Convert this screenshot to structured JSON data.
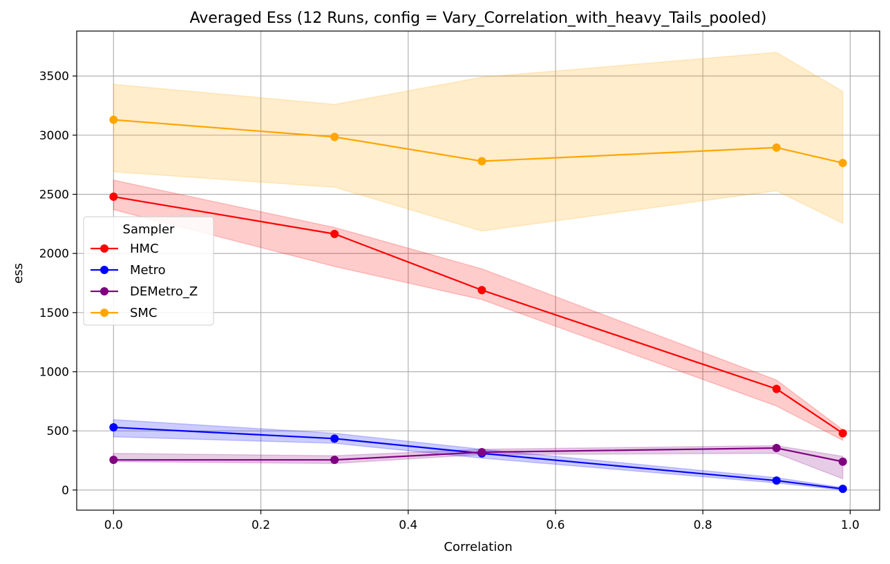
{
  "chart_data": {
    "type": "line",
    "title": "Averaged Ess (12 Runs, config = Vary_Correlation_with_heavy_Tails_pooled)",
    "xlabel": "Correlation",
    "ylabel": "ess",
    "xlim": [
      -0.05,
      1.04
    ],
    "ylim": [
      -170,
      3880
    ],
    "xticks": [
      0.0,
      0.2,
      0.4,
      0.6,
      0.8,
      1.0
    ],
    "xtick_labels": [
      "0.0",
      "0.2",
      "0.4",
      "0.6",
      "0.8",
      "1.0"
    ],
    "yticks": [
      0,
      500,
      1000,
      1500,
      2000,
      2500,
      3000,
      3500
    ],
    "ytick_labels": [
      "0",
      "500",
      "1000",
      "1500",
      "2000",
      "2500",
      "3000",
      "3500"
    ],
    "grid": true,
    "legend": {
      "title": "Sampler",
      "placement": "center-left"
    },
    "x": [
      0.0,
      0.3,
      0.5,
      0.9,
      0.99
    ],
    "series": [
      {
        "name": "HMC",
        "color": "#ff0000",
        "values": [
          2480,
          2165,
          1690,
          855,
          480
        ],
        "lower": [
          2370,
          1890,
          1610,
          710,
          420
        ],
        "upper": [
          2620,
          2220,
          1870,
          930,
          510
        ]
      },
      {
        "name": "Metro",
        "color": "#0000ff",
        "values": [
          530,
          435,
          310,
          80,
          10
        ],
        "lower": [
          450,
          395,
          270,
          60,
          0
        ],
        "upper": [
          595,
          480,
          345,
          105,
          20
        ]
      },
      {
        "name": "DEMetro_Z",
        "color": "#800080",
        "values": [
          255,
          255,
          320,
          355,
          240
        ],
        "lower": [
          240,
          225,
          300,
          310,
          95
        ],
        "upper": [
          310,
          290,
          345,
          375,
          285
        ]
      },
      {
        "name": "SMC",
        "color": "#ffa500",
        "values": [
          3130,
          2985,
          2780,
          2895,
          2765
        ],
        "lower": [
          2690,
          2560,
          2190,
          2530,
          2255
        ],
        "upper": [
          3430,
          3260,
          3490,
          3700,
          3370
        ]
      }
    ]
  }
}
